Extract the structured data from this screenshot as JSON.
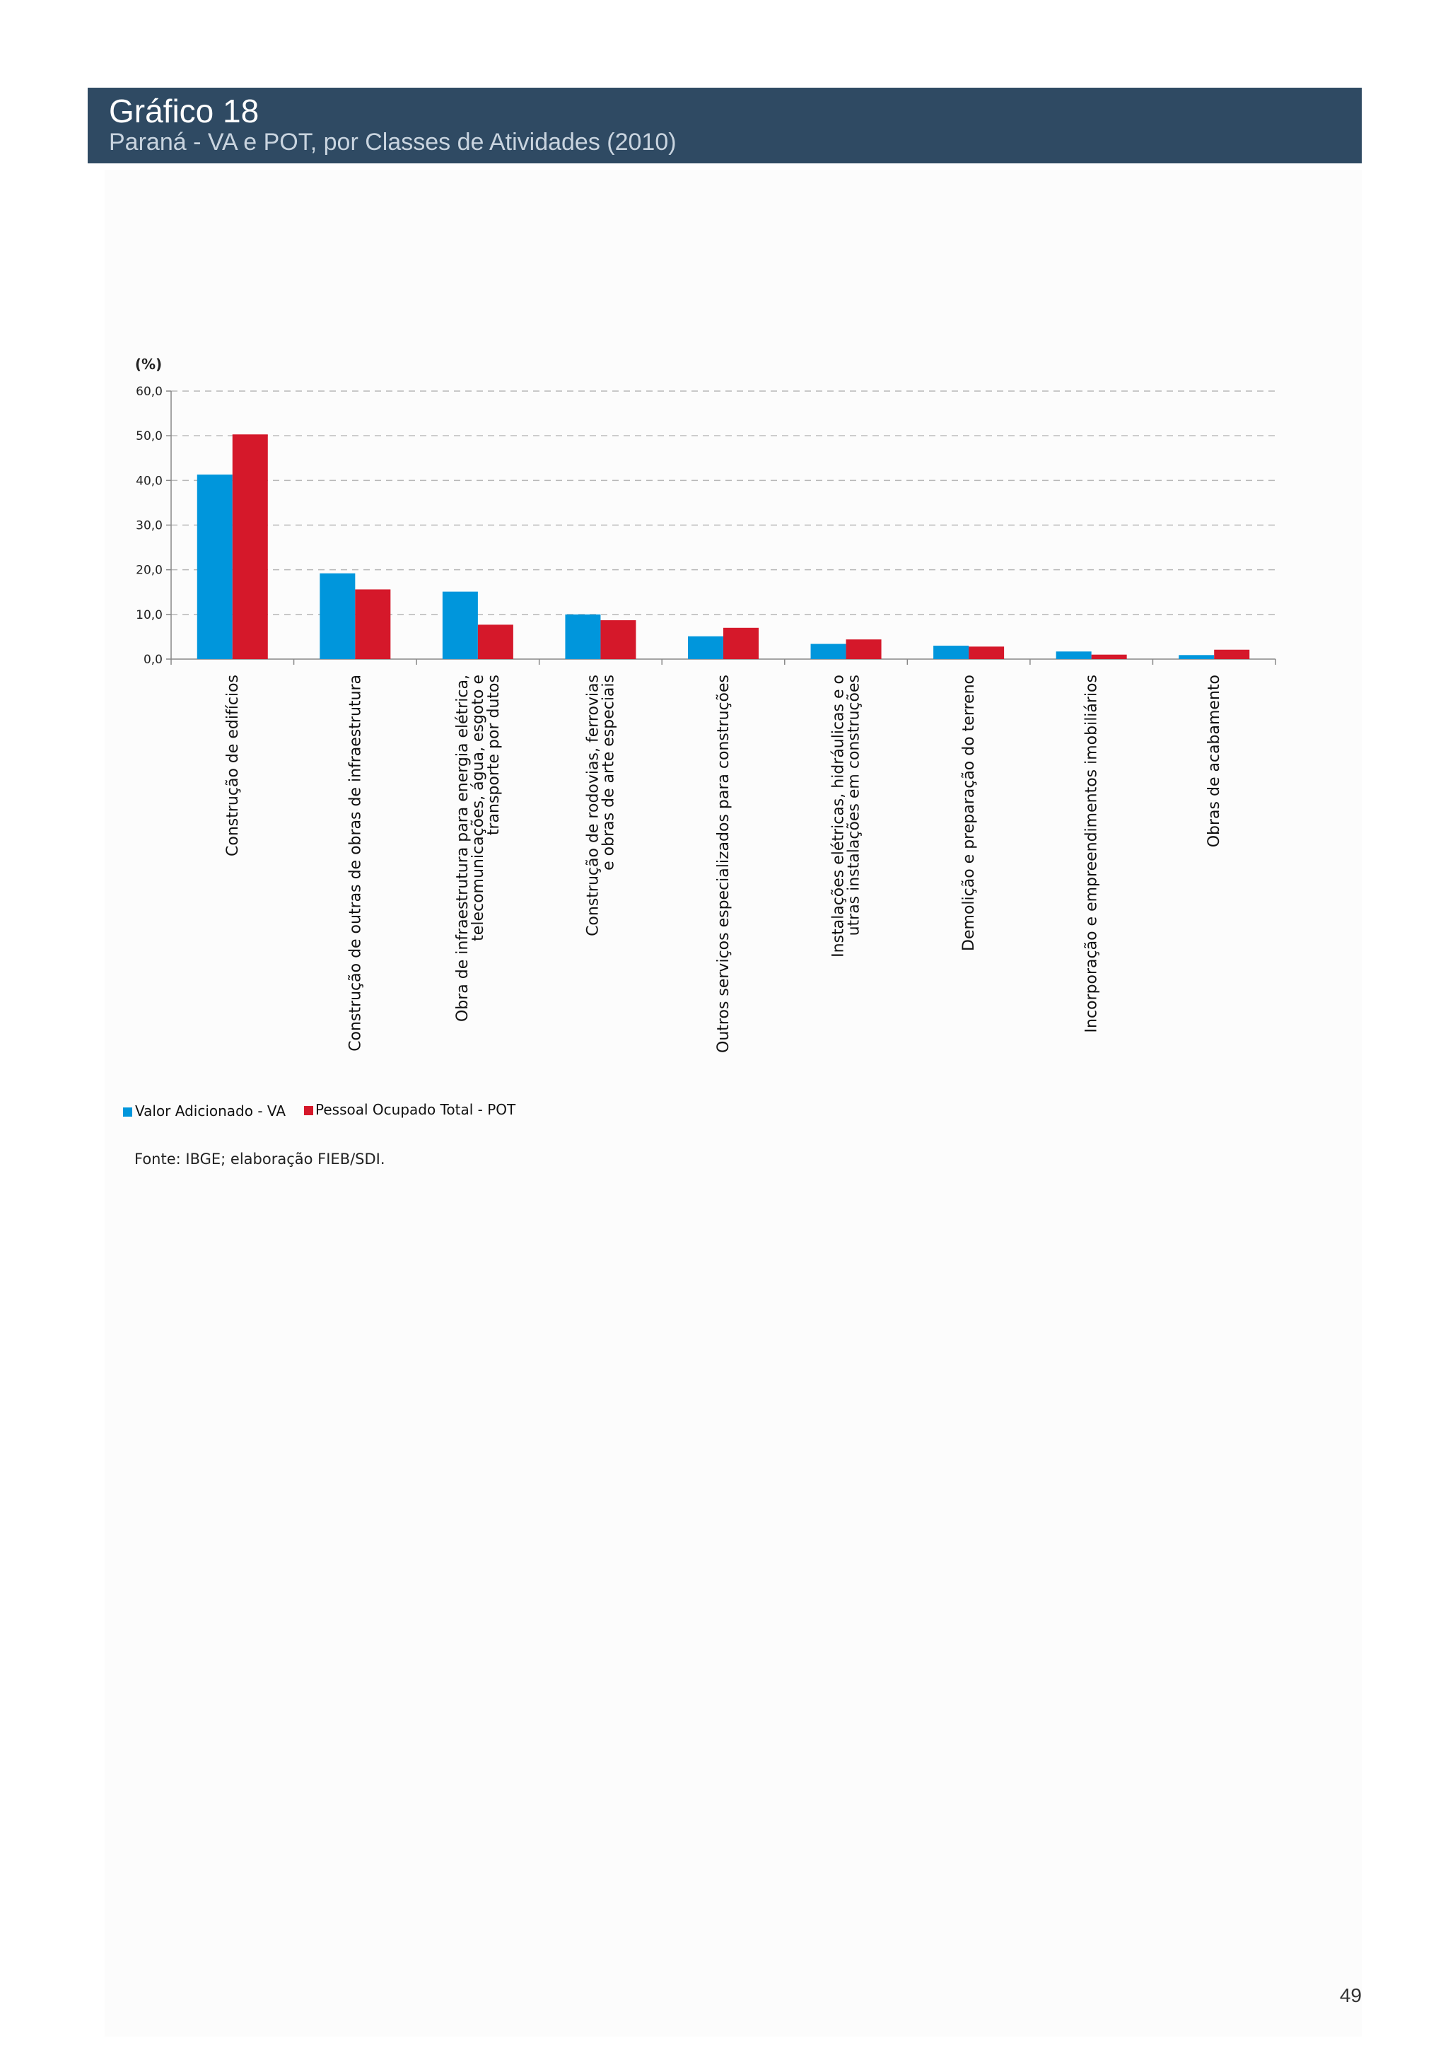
{
  "header": {
    "title": "Gráfico 18",
    "subtitle": "Paraná - VA e POT, por Classes de Atividades (2010)"
  },
  "page_number": "49",
  "source_note": "Fonte: IBGE; elaboração FIEB/SDI.",
  "colors": {
    "header_bg": "#2f4a63",
    "va": "#0096dc",
    "pot": "#d5182a"
  },
  "chart_data": {
    "type": "bar",
    "ylabel": "(%)",
    "ylim": [
      0,
      60
    ],
    "yticks": [
      "0,0",
      "10,0",
      "20,0",
      "30,0",
      "40,0",
      "50,0",
      "60,0"
    ],
    "grid": true,
    "legend_position": "bottom-left",
    "categories": [
      [
        "Construção de edifícios"
      ],
      [
        "Construção  de outras de obras de infraestrutura"
      ],
      [
        "Obra de infraestrutura para energia elétrica,",
        "telecomunicações, água, esgoto e",
        "transporte por dutos"
      ],
      [
        "Construção de rodovias, ferrovias",
        "e obras de arte especiais"
      ],
      [
        "Outros serviços especializados para construções"
      ],
      [
        "Instalações elétricas, hidráulicas e o",
        "utras instalações em construções"
      ],
      [
        "Demolição e preparação do terreno"
      ],
      [
        "Incorporação e empreendimentos imobiliários"
      ],
      [
        "Obras de acabamento"
      ]
    ],
    "series": [
      {
        "name": "Valor Adicionado - VA",
        "values": [
          41.3,
          19.2,
          15.1,
          10.0,
          5.1,
          3.4,
          3.0,
          1.7,
          0.9
        ]
      },
      {
        "name": "Pessoal Ocupado Total - POT",
        "values": [
          50.3,
          15.6,
          7.7,
          8.7,
          7.0,
          4.4,
          2.8,
          1.0,
          2.1
        ]
      }
    ]
  }
}
